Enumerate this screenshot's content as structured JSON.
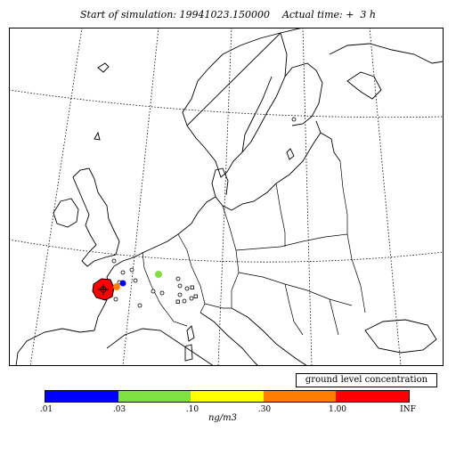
{
  "header": {
    "title": "Start of simulation: 19941023.150000    Actual time: +  3 h"
  },
  "legend": {
    "label": "ground level concentration",
    "unit": "ng/m3",
    "ticks": [
      ".01",
      ".03",
      ".10",
      ".30",
      "1.00",
      "INF"
    ],
    "colors": [
      "#0000ff",
      "#80e040",
      "#ffff00",
      "#ff8000",
      "#ff0000"
    ]
  },
  "map": {
    "release_color": "#ff0000",
    "marker_colors": {
      "blue": "#0000ff",
      "orange": "#ff8000",
      "green": "#80e040"
    }
  }
}
